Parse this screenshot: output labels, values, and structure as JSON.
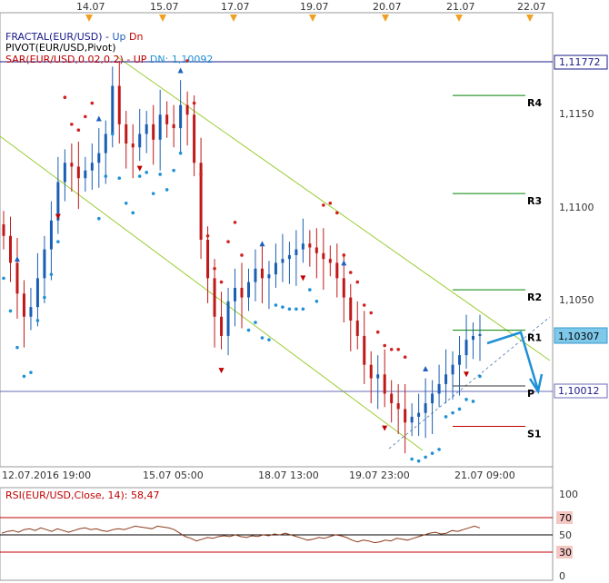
{
  "top_dates": [
    "14.07",
    "15.07",
    "17.07",
    "19.07",
    "20.07",
    "21.07",
    "22.07"
  ],
  "indicators": {
    "fractal_prefix": "FRACTAL(EUR/USD) - ",
    "fractal_up": "Up",
    "fractal_dn": "Dn",
    "pivot": "PIVOT(EUR/USD,Pivot)",
    "sar_prefix": "SAR(EUR/USD,0.02,0.2) - UP",
    "sar_dn": "DN: 1,10092"
  },
  "price_axis": {
    "ticks": [
      "1,1150",
      "1,1100",
      "1,1050"
    ],
    "tag_top": "1,11772",
    "tag_current": "1,10307",
    "tag_lower": "1,10012"
  },
  "pivot_levels": [
    {
      "label": "R4",
      "value": 1.1155,
      "color": "#008000"
    },
    {
      "label": "R3",
      "value": 1.1104,
      "color": "#008000"
    },
    {
      "label": "R2",
      "value": 1.1054,
      "color": "#008000"
    },
    {
      "label": "R1",
      "value": 1.1033,
      "color": "#008000"
    },
    {
      "label": "P",
      "value": 1.1004,
      "color": "#333333"
    },
    {
      "label": "S1",
      "value": 1.0983,
      "color": "#c00000"
    }
  ],
  "time_axis": [
    "12.07.2016 19:00",
    "15.07 05:00",
    "18.07 13:00",
    "19.07 23:00",
    "21.07 09:00"
  ],
  "rsi": {
    "title": "RSI(EUR/USD,Close, 14): 58,47",
    "levels": [
      "100",
      "70",
      "50",
      "30",
      "0"
    ],
    "series": [
      52,
      54,
      55,
      53,
      56,
      57,
      55,
      58,
      56,
      54,
      57,
      55,
      53,
      55,
      57,
      58,
      56,
      57,
      55,
      54,
      56,
      57,
      56,
      58,
      60,
      59,
      58,
      57,
      60,
      59,
      58,
      56,
      52,
      48,
      46,
      43,
      45,
      47,
      46,
      48,
      49,
      48,
      50,
      48,
      47,
      49,
      48,
      50,
      49,
      51,
      50,
      52,
      50,
      48,
      46,
      44,
      45,
      47,
      46,
      48,
      50,
      49,
      47,
      44,
      42,
      44,
      43,
      41,
      42,
      44,
      43,
      46,
      45,
      44,
      46,
      48,
      50,
      52,
      53,
      51,
      52,
      55,
      54,
      56,
      58,
      60,
      58
    ]
  },
  "chart_data": {
    "type": "candlestick",
    "symbol": "EUR/USD",
    "ylim": [
      1.0962,
      1.1198
    ],
    "x_axis_labels": [
      "12.07.2016 19:00",
      "15.07 05:00",
      "18.07 13:00",
      "19.07 23:00",
      "21.07 09:00"
    ],
    "close_series": [
      1.1082,
      1.1068,
      1.1052,
      1.104,
      1.1045,
      1.106,
      1.1075,
      1.109,
      1.111,
      1.112,
      1.1118,
      1.1112,
      1.1116,
      1.112,
      1.1125,
      1.1135,
      1.116,
      1.114,
      1.113,
      1.1128,
      1.1135,
      1.114,
      1.1132,
      1.1145,
      1.114,
      1.1138,
      1.115,
      1.1145,
      1.112,
      1.108,
      1.106,
      1.104,
      1.103,
      1.1048,
      1.1055,
      1.105,
      1.1058,
      1.1065,
      1.106,
      1.1062,
      1.1068,
      1.107,
      1.1072,
      1.1075,
      1.1078,
      1.1076,
      1.1073,
      1.107,
      1.1068,
      1.106,
      1.105,
      1.1038,
      1.103,
      1.1015,
      1.1008,
      1.101,
      1.1,
      1.0995,
      1.0992,
      1.0985,
      1.0988,
      1.099,
      1.0995,
      1.1,
      1.1005,
      1.101,
      1.1015,
      1.102,
      1.1028,
      1.103,
      1.1031
    ],
    "last_price": 1.10307
  }
}
